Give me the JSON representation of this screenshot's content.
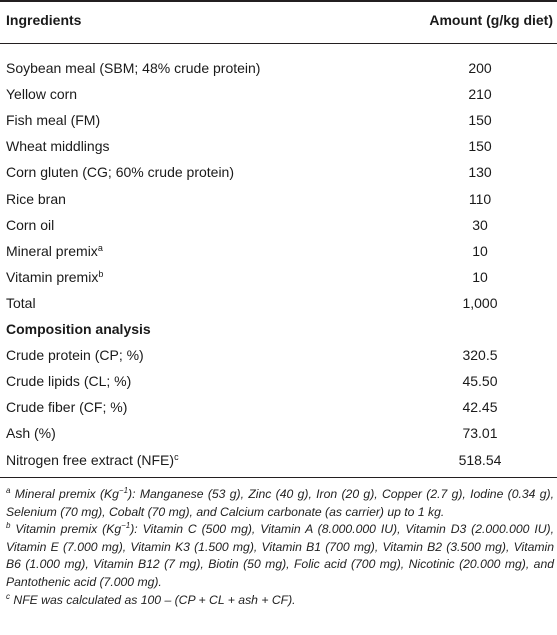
{
  "table": {
    "header": {
      "ingredients": "Ingredients",
      "amount": "Amount (g/kg diet)"
    },
    "rows": [
      {
        "name": "Soybean meal (SBM; 48% crude protein)",
        "sup": "",
        "amount": "200"
      },
      {
        "name": "Yellow corn",
        "sup": "",
        "amount": "210"
      },
      {
        "name": "Fish meal (FM)",
        "sup": "",
        "amount": "150"
      },
      {
        "name": "Wheat middlings",
        "sup": "",
        "amount": "150"
      },
      {
        "name": "Corn gluten (CG; 60% crude protein)",
        "sup": "",
        "amount": "130"
      },
      {
        "name": "Rice bran",
        "sup": "",
        "amount": "110"
      },
      {
        "name": "Corn oil",
        "sup": "",
        "amount": "30"
      },
      {
        "name": "Mineral premix",
        "sup": "a",
        "amount": "10"
      },
      {
        "name": "Vitamin premix",
        "sup": "b",
        "amount": "10"
      },
      {
        "name": "Total",
        "sup": "",
        "amount": "1,000"
      }
    ],
    "composition_title": "Composition analysis",
    "composition": [
      {
        "name": "Crude protein (CP; %)",
        "sup": "",
        "amount": "320.5"
      },
      {
        "name": "Crude lipids (CL; %)",
        "sup": "",
        "amount": "45.50"
      },
      {
        "name": "Crude fiber (CF; %)",
        "sup": "",
        "amount": "42.45"
      },
      {
        "name": "Ash (%)",
        "sup": "",
        "amount": "73.01"
      },
      {
        "name": "Nitrogen free extract (NFE)",
        "sup": "c",
        "amount": "518.54"
      }
    ]
  },
  "footnotes": [
    {
      "mark": "a",
      "text": " Mineral premix (Kg",
      "exp": "−1",
      "text2": "): Manganese (53 g), Zinc (40 g), Iron (20 g), Copper (2.7 g), Iodine (0.34 g), Selenium (70 mg), Cobalt (70 mg), and Calcium carbonate (as carrier) up to 1 kg."
    },
    {
      "mark": "b",
      "text": " Vitamin premix (Kg",
      "exp": "−1",
      "text2": "): Vitamin C (500 mg), Vitamin A (8.000.000 IU), Vitamin D3 (2.000.000 IU), Vitamin E (7.000 mg), Vitamin K3 (1.500 mg), Vitamin B1 (700 mg), Vitamin B2 (3.500 mg), Vitamin B6 (1.000 mg), Vitamin B12 (7 mg), Biotin (50 mg), Folic acid (700 mg), Nicotinic (20.000 mg), and Pantothenic acid (7.000 mg)."
    },
    {
      "mark": "c",
      "text": " NFE was calculated as 100 – (CP + CL + ash + CF).",
      "exp": "",
      "text2": ""
    }
  ]
}
